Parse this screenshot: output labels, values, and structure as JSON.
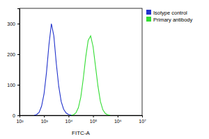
{
  "chart_data": {
    "type": "line",
    "xlabel": "FITC-A",
    "log": "x",
    "x": [
      398,
      501,
      631,
      794,
      1000,
      1259,
      1585,
      1995,
      2512,
      3162,
      3981,
      5012,
      6310,
      7943,
      10000,
      12589,
      15849,
      19953,
      25119,
      31623,
      39811,
      50119,
      63096,
      79433,
      100000,
      125893,
      158489,
      199526,
      251189,
      316228,
      398107,
      501187
    ],
    "series": [
      {
        "name": "Isotype control",
        "color": "#2233cc",
        "values": [
          0,
          3,
          10,
          30,
          70,
          140,
          230,
          300,
          260,
          170,
          95,
          45,
          20,
          8,
          3,
          1,
          0,
          null,
          null,
          null,
          null,
          null,
          null,
          null,
          null,
          null,
          null,
          null,
          null,
          null,
          null,
          null
        ]
      },
      {
        "name": "Primary antibody",
        "color": "#33dd33",
        "values": [
          null,
          null,
          null,
          null,
          null,
          null,
          null,
          null,
          null,
          null,
          null,
          null,
          null,
          null,
          null,
          0,
          2,
          8,
          25,
          60,
          120,
          190,
          245,
          260,
          225,
          160,
          95,
          45,
          18,
          6,
          2,
          0
        ]
      }
    ],
    "xlim": [
      100,
      10000000
    ],
    "xticks": [
      {
        "value": 100,
        "label": "10²"
      },
      {
        "value": 1000,
        "label": "10³"
      },
      {
        "value": 10000,
        "label": "10⁴"
      },
      {
        "value": 100000,
        "label": "10⁵"
      },
      {
        "value": 1000000,
        "label": "10⁶"
      },
      {
        "value": 10000000,
        "label": "10⁷"
      }
    ],
    "ylim": [
      0,
      350
    ],
    "yticks": [
      0,
      100,
      200,
      300
    ],
    "legend": "right",
    "grid": false
  }
}
